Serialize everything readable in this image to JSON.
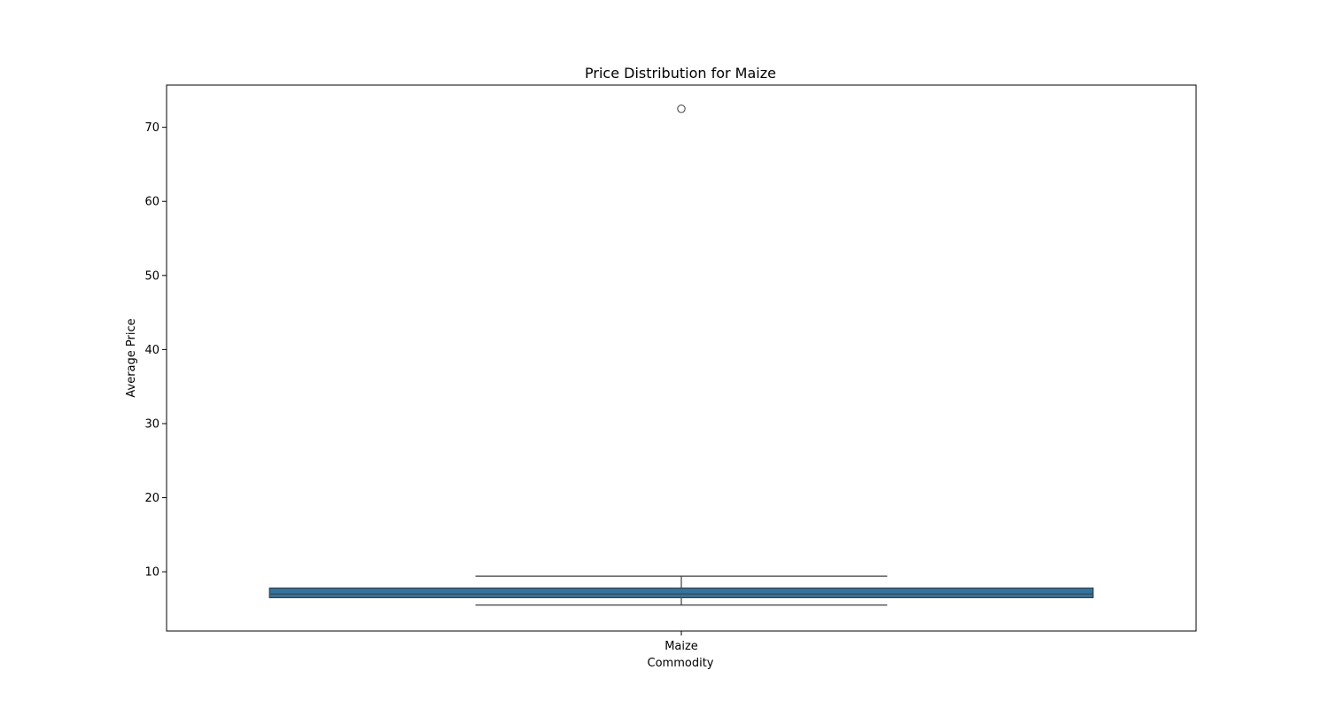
{
  "chart_data": {
    "type": "box",
    "title": "Price Distribution for Maize",
    "xlabel": "Commodity",
    "ylabel": "Average Price",
    "categories": [
      "Maize"
    ],
    "ylim": [
      2.0,
      75.7
    ],
    "yticks": [
      10,
      20,
      30,
      40,
      50,
      60,
      70
    ],
    "boxes": [
      {
        "category": "Maize",
        "whisker_low": 5.5,
        "q1": 6.5,
        "median": 7.0,
        "q3": 7.8,
        "whisker_high": 9.4,
        "outliers": [
          72.5
        ]
      }
    ],
    "box_color": "#3274a1",
    "line_color": "#3f3f3f",
    "grid": false,
    "legend": "none"
  }
}
